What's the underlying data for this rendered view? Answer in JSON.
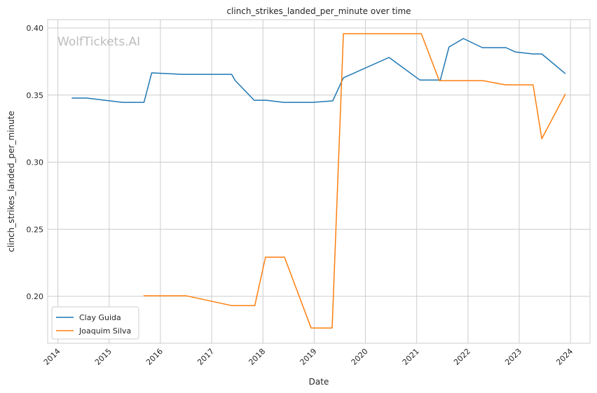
{
  "chart_data": {
    "type": "line",
    "title": "clinch_strikes_landed_per_minute over time",
    "xlabel": "Date",
    "ylabel": "clinch_strikes_landed_per_minute",
    "xlim": [
      2013.8,
      2024.38
    ],
    "ylim": [
      0.165,
      0.4063
    ],
    "xticks": [
      2014,
      2015,
      2016,
      2017,
      2018,
      2019,
      2020,
      2021,
      2022,
      2023,
      2024
    ],
    "xtick_labels": [
      "2014",
      "2015",
      "2016",
      "2017",
      "2018",
      "2019",
      "2020",
      "2021",
      "2022",
      "2023",
      "2024"
    ],
    "yticks": [
      0.2,
      0.25,
      0.3,
      0.35,
      0.4
    ],
    "ytick_labels": [
      "0.20",
      "0.25",
      "0.30",
      "0.35",
      "0.40"
    ],
    "grid": true,
    "legend_position": "bottom-left",
    "watermark": "WolfTickets.AI",
    "series": [
      {
        "name": "Clay Guida",
        "color": "#1f77b4",
        "x": [
          2014.27,
          2014.56,
          2015.26,
          2015.68,
          2015.83,
          2016.42,
          2017.39,
          2017.46,
          2017.83,
          2018.06,
          2018.4,
          2018.97,
          2019.36,
          2019.57,
          2020.46,
          2021.06,
          2021.46,
          2021.63,
          2021.91,
          2022.28,
          2022.74,
          2022.92,
          2023.26,
          2023.44,
          2023.9
        ],
        "y": [
          0.3478,
          0.3478,
          0.3446,
          0.3446,
          0.3666,
          0.3655,
          0.3655,
          0.3608,
          0.3462,
          0.3462,
          0.3446,
          0.3446,
          0.3457,
          0.3629,
          0.3781,
          0.3613,
          0.3613,
          0.3859,
          0.3922,
          0.3854,
          0.3854,
          0.3822,
          0.3807,
          0.3807,
          0.366
        ]
      },
      {
        "name": "Joaquim Silva",
        "color": "#ff7f0e",
        "x": [
          2015.67,
          2016.5,
          2017.39,
          2017.84,
          2018.05,
          2018.42,
          2018.94,
          2019.35,
          2019.57,
          2021.09,
          2021.44,
          2022.29,
          2022.73,
          2023.27,
          2023.44,
          2023.9
        ],
        "y": [
          0.2004,
          0.2004,
          0.1931,
          0.1931,
          0.2292,
          0.2292,
          0.1764,
          0.1764,
          0.3958,
          0.3958,
          0.3608,
          0.3608,
          0.3577,
          0.3577,
          0.3175,
          0.3509
        ]
      }
    ]
  }
}
